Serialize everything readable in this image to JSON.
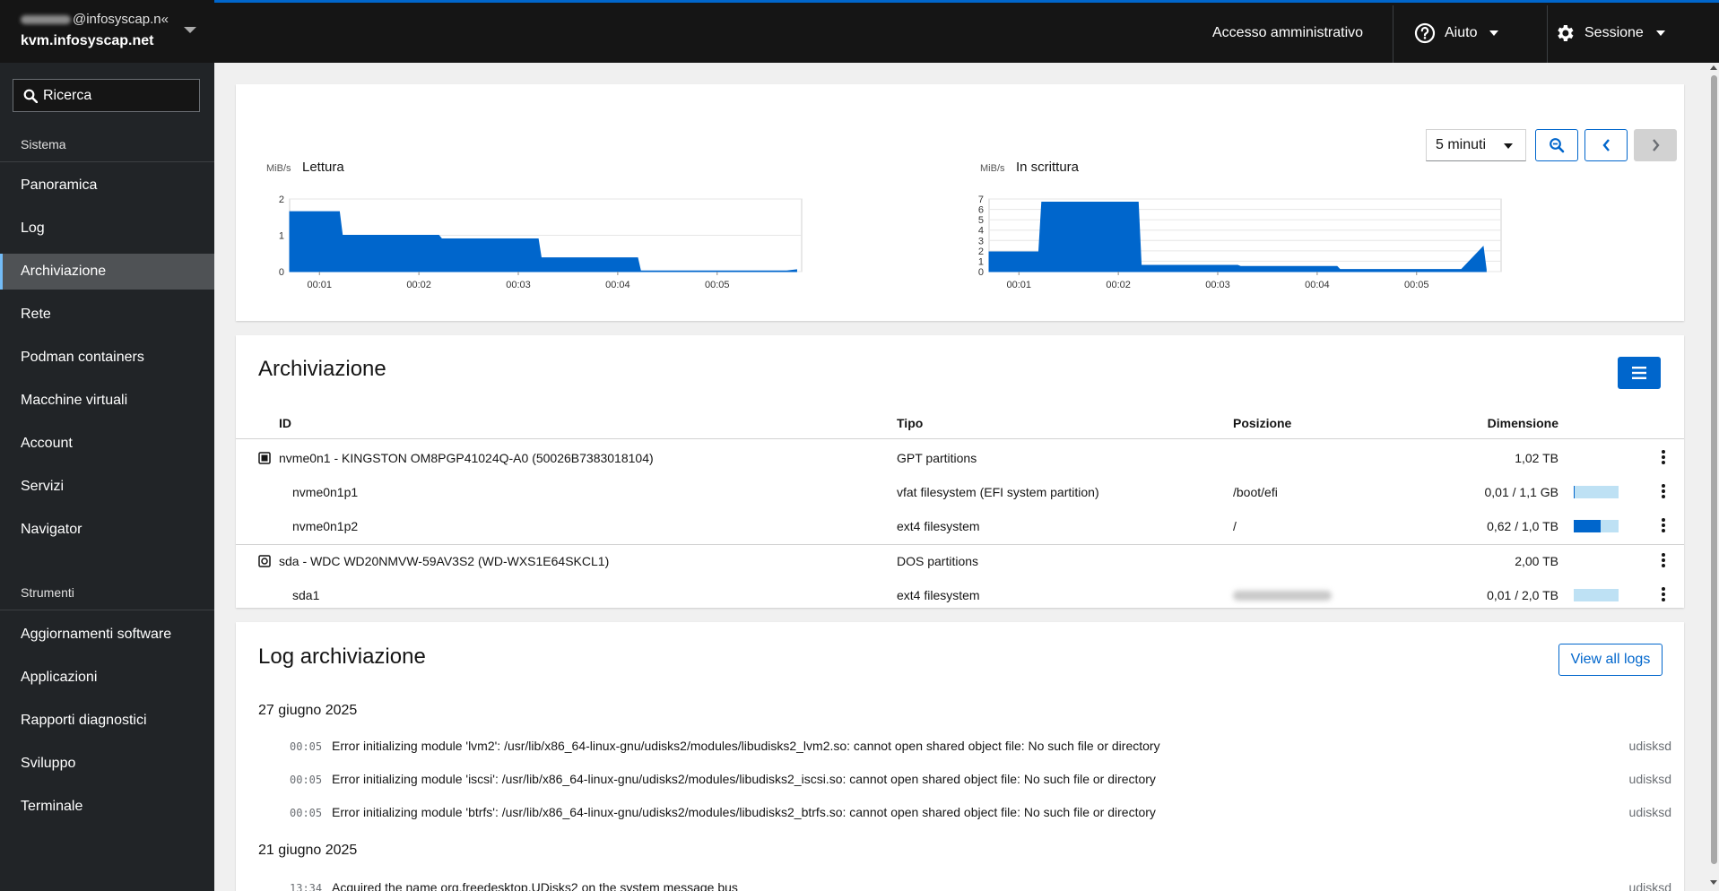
{
  "host": {
    "user": "@infosyscap.n«",
    "name": "kvm.infosyscap.net"
  },
  "search": {
    "placeholder": "Ricerca"
  },
  "sidebar": {
    "section_system": "Sistema",
    "items": [
      {
        "label": "Panoramica"
      },
      {
        "label": "Log"
      },
      {
        "label": "Archiviazione",
        "active": true
      },
      {
        "label": "Rete"
      },
      {
        "label": "Podman containers"
      },
      {
        "label": "Macchine virtuali"
      },
      {
        "label": "Account"
      },
      {
        "label": "Servizi"
      },
      {
        "label": "Navigator"
      }
    ],
    "section_tools": "Strumenti",
    "tools": [
      {
        "label": "Aggiornamenti software"
      },
      {
        "label": "Applicazioni"
      },
      {
        "label": "Rapporti diagnostici"
      },
      {
        "label": "Sviluppo"
      },
      {
        "label": "Terminale"
      }
    ]
  },
  "topbar": {
    "admin_label": "Accesso amministrativo",
    "help_label": "Aiuto",
    "session_label": "Sessione"
  },
  "charts_toolbar": {
    "range": "5 minuti"
  },
  "chart_data": [
    {
      "type": "area",
      "title": "Lettura",
      "unit": "MiB/s",
      "xlabel": "",
      "ylabel": "MiB/s",
      "ylim": [
        0,
        2
      ],
      "yticks": [
        "0",
        "1",
        "2"
      ],
      "xticks": [
        "00:01",
        "00:02",
        "00:03",
        "00:04",
        "00:05"
      ],
      "color": "#0066cc",
      "series": [
        {
          "x": [
            0.0,
            0.5,
            0.53,
            1.5,
            1.53,
            2.5,
            2.53,
            3.5,
            3.53,
            4.5,
            5.0,
            5.1
          ],
          "values": [
            1.65,
            1.65,
            1.0,
            1.0,
            0.9,
            0.9,
            0.38,
            0.38,
            0.02,
            0.02,
            0.02,
            0.05
          ]
        }
      ]
    },
    {
      "type": "area",
      "title": "In scrittura",
      "unit": "MiB/s",
      "xlabel": "",
      "ylabel": "MiB/s",
      "ylim": [
        0,
        7
      ],
      "yticks": [
        "0",
        "1",
        "2",
        "3",
        "4",
        "5",
        "6",
        "7"
      ],
      "xticks": [
        "00:01",
        "00:02",
        "00:03",
        "00:04",
        "00:05"
      ],
      "color": "#0066cc",
      "series": [
        {
          "x": [
            0.0,
            0.5,
            0.53,
            1.5,
            1.53,
            2.5,
            2.53,
            3.5,
            3.53,
            4.5,
            4.75,
            4.97,
            5.0
          ],
          "values": [
            1.9,
            1.9,
            6.7,
            6.7,
            0.6,
            0.6,
            0.5,
            0.5,
            0.2,
            0.2,
            0.2,
            2.4,
            0.2
          ]
        }
      ]
    }
  ],
  "storage": {
    "title": "Archiviazione",
    "columns": {
      "id": "ID",
      "type": "Tipo",
      "position": "Posizione",
      "size": "Dimensione"
    },
    "rows": [
      {
        "id": "nvme0n1 - KINGSTON OM8PGP41024Q-A0 (50026B7383018104)",
        "type": "GPT partitions",
        "position": "",
        "size": "1,02 TB",
        "icon": "disk-icon",
        "usage": null
      },
      {
        "id": "nvme0n1p1",
        "type": "vfat filesystem (EFI system partition)",
        "position": "/boot/efi",
        "size": "0,01 / 1,1 GB",
        "usage": 0.02
      },
      {
        "id": "nvme0n1p2",
        "type": "ext4 filesystem",
        "position": "/",
        "size": "0,62 / 1,0 TB",
        "usage": 0.6
      },
      {
        "id": "sda - WDC WD20NMVW-59AV3S2 (WD-WXS1E64SKCL1)",
        "type": "DOS partitions",
        "position": "",
        "size": "2,00 TB",
        "icon": "hdd-icon",
        "usage": null
      },
      {
        "id": "sda1",
        "type": "ext4 filesystem",
        "position": "",
        "size": "0,01 / 2,0 TB",
        "usage": 0.0
      }
    ]
  },
  "logs": {
    "title": "Log archiviazione",
    "view_all": "View all logs",
    "groups": [
      {
        "date": "27 giugno 2025",
        "entries": [
          {
            "time": "00:05",
            "msg": "Error initializing module 'lvm2': /usr/lib/x86_64-linux-gnu/udisks2/modules/libudisks2_lvm2.so: cannot open shared object file: No such file or directory",
            "src": "udisksd"
          },
          {
            "time": "00:05",
            "msg": "Error initializing module 'iscsi': /usr/lib/x86_64-linux-gnu/udisks2/modules/libudisks2_iscsi.so: cannot open shared object file: No such file or directory",
            "src": "udisksd"
          },
          {
            "time": "00:05",
            "msg": "Error initializing module 'btrfs': /usr/lib/x86_64-linux-gnu/udisks2/modules/libudisks2_btrfs.so: cannot open shared object file: No such file or directory",
            "src": "udisksd"
          }
        ]
      },
      {
        "date": "21 giugno 2025",
        "entries": [
          {
            "time": "13:34",
            "msg": "Acquired the name org.freedesktop.UDisks2 on the system message bus",
            "src": "udisksd"
          }
        ]
      }
    ]
  }
}
